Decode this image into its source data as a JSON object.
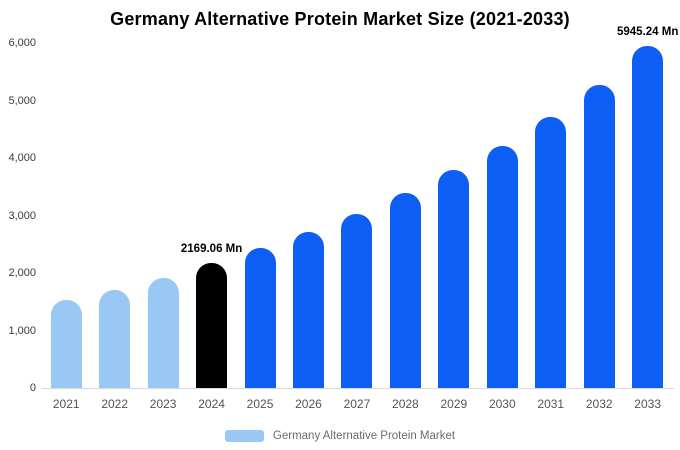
{
  "page": {
    "background": "#ffffff"
  },
  "chart_data": {
    "type": "bar",
    "title": "Germany Alternative Protein Market Size (2021-2033)",
    "categories": [
      "2021",
      "2022",
      "2023",
      "2024",
      "2025",
      "2026",
      "2027",
      "2028",
      "2029",
      "2030",
      "2031",
      "2032",
      "2033"
    ],
    "values": [
      1530,
      1700,
      1910,
      2169.06,
      2435,
      2715,
      3030,
      3390,
      3790,
      4210,
      4715,
      5270,
      5945.24
    ],
    "bar_colors": [
      "#99c8f5",
      "#99c8f5",
      "#99c8f5",
      "#000000",
      "#0d5ef5",
      "#0d5ef5",
      "#0d5ef5",
      "#0d5ef5",
      "#0d5ef5",
      "#0d5ef5",
      "#0d5ef5",
      "#0d5ef5",
      "#0d5ef5"
    ],
    "annotations": [
      {
        "category": "2024",
        "text": "2169.06 Mn"
      },
      {
        "category": "2033",
        "text": "5945.24 Mn"
      }
    ],
    "xlabel": "",
    "ylabel": "",
    "ylim": [
      0,
      6000
    ],
    "ytick_labels": [
      "0",
      "1,000",
      "2,000",
      "3,000",
      "4,000",
      "5,000",
      "6,000"
    ],
    "grid": false,
    "legend_position": "bottom",
    "legend": {
      "label": "Germany Alternative Protein Market",
      "swatch_color": "#99c8f5"
    }
  }
}
